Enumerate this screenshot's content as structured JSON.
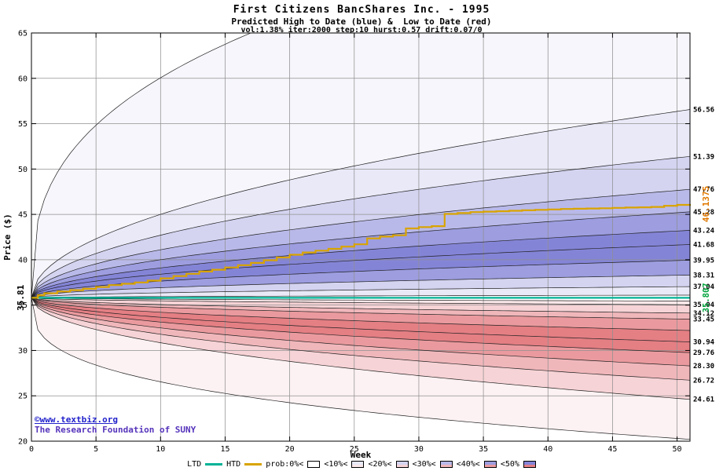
{
  "header": {
    "title": "First Citizens BancShares Inc. - 1995",
    "subtitle": "Predicted High to Date (blue) &  Low to Date (red)",
    "params": "vol:1.38% iter:2000 step:10 hurst:0.57 drift:0.07/0"
  },
  "watermark": {
    "line1": "©www.textbiz.org",
    "line2": "The Research Foundation of SUNY",
    "color1": "#2222cc",
    "color2": "#5533bb"
  },
  "legend": {
    "items": [
      {
        "label": "LTD",
        "type": "line",
        "color": "#00b296"
      },
      {
        "label": "HTD",
        "type": "line",
        "color": "#d9a400"
      },
      {
        "label": "prob:0%<",
        "type": "box",
        "top": "#ffffff",
        "bottom": "#ffffff"
      },
      {
        "label": "<10%<",
        "type": "box",
        "top": "#e9e9f8",
        "bottom": "#fae8ea"
      },
      {
        "label": "<20%<",
        "type": "box",
        "top": "#d4d4f1",
        "bottom": "#f6d3d6"
      },
      {
        "label": "<30%<",
        "type": "box",
        "top": "#b9b9e9",
        "bottom": "#f0b7bb"
      },
      {
        "label": "<40%<",
        "type": "box",
        "top": "#9d9de0",
        "bottom": "#ea9a9e"
      },
      {
        "label": "<50%",
        "type": "box",
        "top": "#8484d7",
        "bottom": "#e47f84"
      }
    ]
  },
  "chart_data": {
    "type": "area",
    "xlabel": "Week",
    "ylabel": "Price ($)",
    "xlim": [
      0,
      51
    ],
    "ylim": [
      20,
      65
    ],
    "xticks": [
      0,
      5,
      10,
      15,
      20,
      25,
      30,
      35,
      40,
      45,
      50
    ],
    "yticks": [
      20,
      25,
      30,
      35,
      40,
      45,
      50,
      55,
      60,
      65
    ],
    "grid": true,
    "start_price": 35.81,
    "start_label": "35.81",
    "high_fan": {
      "exp": 0.5,
      "boundaries": [
        36.1,
        37.04,
        38.31,
        39.95,
        41.68,
        43.24,
        45.28,
        47.76,
        51.39,
        56.56
      ],
      "envelope": {
        "end": 78.7,
        "exp": 0.35
      },
      "band_colors": [
        "#e9e9f8",
        "#d4d4f1",
        "#9d9de0",
        "#8484d7",
        "#8484d7",
        "#9d9de0",
        "#b9b9e9",
        "#d4d4f1",
        "#e9e9f8",
        "#f6f6fc"
      ]
    },
    "low_fan": {
      "exp": 0.5,
      "boundaries": [
        35.45,
        35.04,
        34.12,
        33.45,
        32.2,
        30.94,
        29.76,
        28.3,
        26.72,
        24.61
      ],
      "envelope": {
        "end": 20.2,
        "exp": 0.32
      },
      "band_colors": [
        "#fae8ea",
        "#f6d3d6",
        "#f0b7bb",
        "#ea9a9e",
        "#e47f84",
        "#e47f84",
        "#ea9a9e",
        "#f0b7bb",
        "#f6d3d6",
        "#fdf2f3"
      ]
    },
    "htd": {
      "color": "#d9a400",
      "final_value": 46.1375,
      "final_label": "46.1375",
      "label_color": "#e07800",
      "steps": [
        [
          0,
          35.81
        ],
        [
          0.5,
          36.1
        ],
        [
          1,
          36.3
        ],
        [
          2,
          36.5
        ],
        [
          3,
          36.65
        ],
        [
          4,
          36.8
        ],
        [
          5,
          37.0
        ],
        [
          6,
          37.2
        ],
        [
          7,
          37.35
        ],
        [
          8,
          37.5
        ],
        [
          9,
          37.7
        ],
        [
          10,
          37.95
        ],
        [
          11,
          38.2
        ],
        [
          12,
          38.45
        ],
        [
          13,
          38.7
        ],
        [
          14,
          38.9
        ],
        [
          15,
          39.15
        ],
        [
          16,
          39.4
        ],
        [
          17,
          39.65
        ],
        [
          18,
          39.95
        ],
        [
          19,
          40.25
        ],
        [
          20,
          40.55
        ],
        [
          21,
          40.8
        ],
        [
          22,
          41.0
        ],
        [
          23,
          41.2
        ],
        [
          24,
          41.45
        ],
        [
          25,
          41.7
        ],
        [
          26,
          42.35
        ],
        [
          27,
          42.55
        ],
        [
          28,
          42.7
        ],
        [
          29,
          43.45
        ],
        [
          30,
          43.6
        ],
        [
          31,
          43.7
        ],
        [
          32,
          45.05
        ],
        [
          33,
          45.15
        ],
        [
          34,
          45.25
        ],
        [
          35,
          45.3
        ],
        [
          36,
          45.35
        ],
        [
          37,
          45.4
        ],
        [
          38,
          45.45
        ],
        [
          39,
          45.5
        ],
        [
          40,
          45.55
        ],
        [
          41,
          45.6
        ],
        [
          42,
          45.62
        ],
        [
          43,
          45.65
        ],
        [
          44,
          45.68
        ],
        [
          45,
          45.72
        ],
        [
          46,
          45.75
        ],
        [
          47,
          45.78
        ],
        [
          48,
          45.82
        ],
        [
          49,
          45.95
        ],
        [
          50,
          46.05
        ],
        [
          51,
          46.1375
        ]
      ]
    },
    "ltd": {
      "color": "#00b296",
      "value": 35.807,
      "final_label": "35.807",
      "label_color": "#00a43c"
    },
    "right_axis_labels": [
      "56.56",
      "51.39",
      "47.76",
      "45.28",
      "43.24",
      "41.68",
      "39.95",
      "38.31",
      "37.04",
      "35.04",
      "34.12",
      "33.45",
      "30.94",
      "29.76",
      "28.30",
      "26.72",
      "24.61"
    ]
  }
}
